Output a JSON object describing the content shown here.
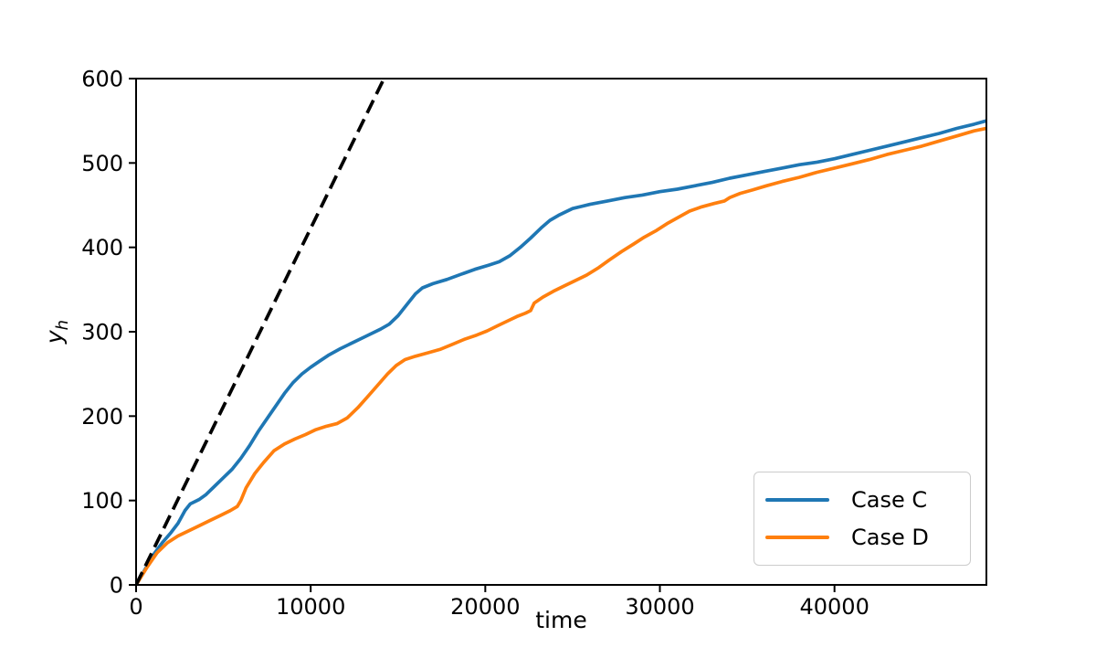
{
  "figure": {
    "background": "#ffffff",
    "frame_color": "#000000"
  },
  "chart_data": {
    "type": "line",
    "xlabel": "time",
    "ylabel": "y_h",
    "ylabel_base": "y",
    "ylabel_sub": "h",
    "xlim": [
      0,
      48700
    ],
    "ylim": [
      0,
      600
    ],
    "grid": false,
    "xticks": [
      {
        "v": 0,
        "label": "0"
      },
      {
        "v": 10000,
        "label": "10000"
      },
      {
        "v": 20000,
        "label": "20000"
      },
      {
        "v": 30000,
        "label": "30000"
      },
      {
        "v": 40000,
        "label": "40000"
      }
    ],
    "yticks": [
      {
        "v": 0,
        "label": "0"
      },
      {
        "v": 100,
        "label": "100"
      },
      {
        "v": 200,
        "label": "200"
      },
      {
        "v": 300,
        "label": "300"
      },
      {
        "v": 400,
        "label": "400"
      },
      {
        "v": 500,
        "label": "500"
      },
      {
        "v": 600,
        "label": "600"
      }
    ],
    "legend": {
      "position": "lower right",
      "items": [
        "Case C",
        "Case D"
      ]
    },
    "series": [
      {
        "name": "Case C",
        "color": "#1f77b4",
        "style": "solid",
        "in_legend": true,
        "points": [
          [
            0,
            0
          ],
          [
            500,
            18
          ],
          [
            1000,
            36
          ],
          [
            1500,
            50
          ],
          [
            2000,
            62
          ],
          [
            2400,
            73
          ],
          [
            2800,
            88
          ],
          [
            3100,
            96
          ],
          [
            3600,
            101
          ],
          [
            4000,
            107
          ],
          [
            4500,
            117
          ],
          [
            5000,
            127
          ],
          [
            5500,
            137
          ],
          [
            6000,
            150
          ],
          [
            6500,
            165
          ],
          [
            7000,
            182
          ],
          [
            7500,
            197
          ],
          [
            8000,
            212
          ],
          [
            8500,
            227
          ],
          [
            9000,
            240
          ],
          [
            9500,
            250
          ],
          [
            10000,
            258
          ],
          [
            10500,
            265
          ],
          [
            11000,
            272
          ],
          [
            11700,
            280
          ],
          [
            12500,
            288
          ],
          [
            13200,
            295
          ],
          [
            14000,
            303
          ],
          [
            14500,
            309
          ],
          [
            15000,
            319
          ],
          [
            15500,
            332
          ],
          [
            16000,
            345
          ],
          [
            16400,
            352
          ],
          [
            17000,
            357
          ],
          [
            17800,
            362
          ],
          [
            18600,
            368
          ],
          [
            19400,
            374
          ],
          [
            20200,
            379
          ],
          [
            20800,
            383
          ],
          [
            21400,
            390
          ],
          [
            22000,
            400
          ],
          [
            22600,
            411
          ],
          [
            23200,
            423
          ],
          [
            23700,
            432
          ],
          [
            24200,
            438
          ],
          [
            25000,
            446
          ],
          [
            26000,
            451
          ],
          [
            27000,
            455
          ],
          [
            28000,
            459
          ],
          [
            29000,
            462
          ],
          [
            30000,
            466
          ],
          [
            31000,
            469
          ],
          [
            32000,
            473
          ],
          [
            33000,
            477
          ],
          [
            34000,
            482
          ],
          [
            35000,
            486
          ],
          [
            36000,
            490
          ],
          [
            37000,
            494
          ],
          [
            38000,
            498
          ],
          [
            39000,
            501
          ],
          [
            40000,
            505
          ],
          [
            41000,
            510
          ],
          [
            42000,
            515
          ],
          [
            43000,
            520
          ],
          [
            44000,
            525
          ],
          [
            45000,
            530
          ],
          [
            46000,
            535
          ],
          [
            47000,
            541
          ],
          [
            48000,
            546
          ],
          [
            48700,
            550
          ]
        ]
      },
      {
        "name": "Case D",
        "color": "#ff7f0e",
        "style": "solid",
        "in_legend": true,
        "points": [
          [
            0,
            0
          ],
          [
            600,
            20
          ],
          [
            1200,
            38
          ],
          [
            1800,
            50
          ],
          [
            2400,
            58
          ],
          [
            3000,
            64
          ],
          [
            3600,
            70
          ],
          [
            4200,
            76
          ],
          [
            4800,
            82
          ],
          [
            5400,
            88
          ],
          [
            5800,
            93
          ],
          [
            6000,
            100
          ],
          [
            6300,
            115
          ],
          [
            6800,
            132
          ],
          [
            7300,
            145
          ],
          [
            7900,
            159
          ],
          [
            8500,
            167
          ],
          [
            9100,
            173
          ],
          [
            9700,
            178
          ],
          [
            10300,
            184
          ],
          [
            10900,
            188
          ],
          [
            11500,
            191
          ],
          [
            12100,
            198
          ],
          [
            12700,
            210
          ],
          [
            13300,
            224
          ],
          [
            13900,
            238
          ],
          [
            14400,
            250
          ],
          [
            14900,
            260
          ],
          [
            15400,
            267
          ],
          [
            16000,
            271
          ],
          [
            16700,
            275
          ],
          [
            17400,
            279
          ],
          [
            18100,
            285
          ],
          [
            18800,
            291
          ],
          [
            19500,
            296
          ],
          [
            20100,
            301
          ],
          [
            20700,
            307
          ],
          [
            21300,
            313
          ],
          [
            21800,
            318
          ],
          [
            22300,
            322
          ],
          [
            22600,
            325
          ],
          [
            22800,
            334
          ],
          [
            23300,
            341
          ],
          [
            23900,
            348
          ],
          [
            24500,
            354
          ],
          [
            25100,
            360
          ],
          [
            25800,
            367
          ],
          [
            26500,
            376
          ],
          [
            27100,
            385
          ],
          [
            27800,
            395
          ],
          [
            28500,
            404
          ],
          [
            29100,
            412
          ],
          [
            29800,
            420
          ],
          [
            30400,
            428
          ],
          [
            31100,
            436
          ],
          [
            31700,
            443
          ],
          [
            32400,
            448
          ],
          [
            33100,
            452
          ],
          [
            33700,
            455
          ],
          [
            34000,
            459
          ],
          [
            34600,
            464
          ],
          [
            35300,
            468
          ],
          [
            36100,
            473
          ],
          [
            37000,
            478
          ],
          [
            38000,
            483
          ],
          [
            39000,
            489
          ],
          [
            40000,
            494
          ],
          [
            41000,
            499
          ],
          [
            42000,
            504
          ],
          [
            43000,
            510
          ],
          [
            44000,
            515
          ],
          [
            45000,
            520
          ],
          [
            46000,
            526
          ],
          [
            47000,
            532
          ],
          [
            48000,
            538
          ],
          [
            48700,
            541
          ]
        ]
      },
      {
        "name": "reference-dashed",
        "color": "#000000",
        "style": "dashed",
        "in_legend": false,
        "points": [
          [
            0,
            0
          ],
          [
            14550,
            615
          ]
        ]
      }
    ]
  }
}
